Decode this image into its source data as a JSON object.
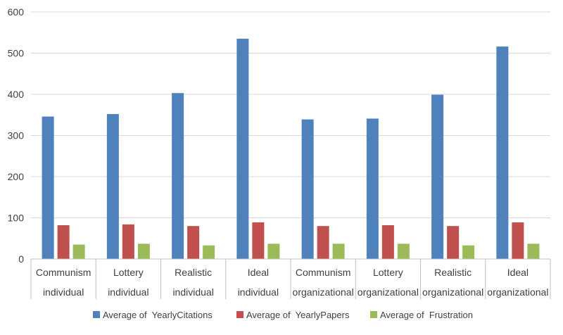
{
  "chart_data": {
    "type": "bar",
    "categories": [
      [
        "Communism",
        "individual"
      ],
      [
        "Lottery",
        "individual"
      ],
      [
        "Realistic",
        "individual"
      ],
      [
        "Ideal",
        "individual"
      ],
      [
        "Communism",
        "organizational"
      ],
      [
        "Lottery",
        "organizational"
      ],
      [
        "Realistic",
        "organizational"
      ],
      [
        "Ideal",
        "organizational"
      ]
    ],
    "series": [
      {
        "name": "Average of  YearlyCitations",
        "color": "#4F81BD",
        "values": [
          346,
          352,
          403,
          535,
          339,
          341,
          399,
          516
        ]
      },
      {
        "name": "Average of  YearlyPapers",
        "color": "#C0504D",
        "values": [
          82,
          84,
          80,
          89,
          80,
          82,
          80,
          89
        ]
      },
      {
        "name": "Average of  Frustration",
        "color": "#9BBB59",
        "values": [
          35,
          37,
          33,
          37,
          37,
          37,
          33,
          37
        ]
      }
    ],
    "ylim": [
      0,
      600
    ],
    "yticks": [
      0,
      100,
      200,
      300,
      400,
      500,
      600
    ],
    "grid": true,
    "legend_position": "bottom"
  }
}
